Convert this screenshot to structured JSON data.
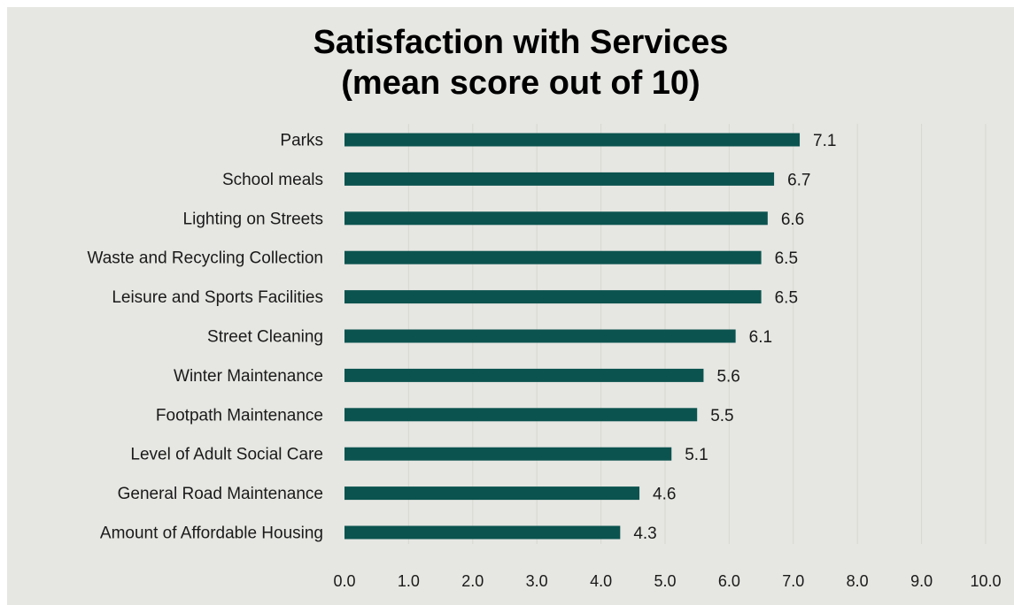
{
  "chart_data": {
    "type": "bar",
    "orientation": "horizontal",
    "title": [
      "Satisfaction with Services",
      "(mean score out of 10)"
    ],
    "categories": [
      "Parks",
      "School meals",
      "Lighting on Streets",
      "Waste and Recycling Collection",
      "Leisure and Sports Facilities",
      "Street Cleaning",
      "Winter Maintenance",
      "Footpath Maintenance",
      "Level of Adult Social Care",
      "General Road Maintenance",
      "Amount of Affordable Housing"
    ],
    "values": [
      7.1,
      6.7,
      6.6,
      6.5,
      6.5,
      6.1,
      5.6,
      5.5,
      5.1,
      4.6,
      4.3
    ],
    "value_labels": [
      "7.1",
      "6.7",
      "6.6",
      "6.5",
      "6.5",
      "6.1",
      "5.6",
      "5.5",
      "5.1",
      "4.6",
      "4.3"
    ],
    "xlim": [
      0,
      10
    ],
    "x_ticks": [
      "0.0",
      "1.0",
      "2.0",
      "3.0",
      "4.0",
      "5.0",
      "6.0",
      "7.0",
      "8.0",
      "9.0",
      "10.0"
    ],
    "xlabel": "",
    "ylabel": "",
    "grid": "vertical",
    "legend": "none",
    "colors": {
      "bar": "#0b534f",
      "background": "#e6e6e2",
      "grid": "#d8d8d2",
      "text": "#1a1a1a"
    }
  }
}
